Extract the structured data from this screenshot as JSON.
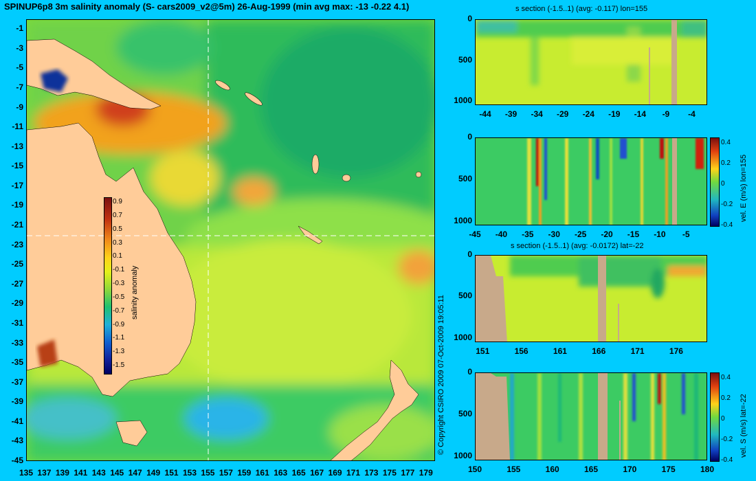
{
  "title": "SPINUP6p8 3m salinity anomaly (S- cars2009_v2@5m) 26-Aug-1999 (min avg max: -13 -0.22 4.1)",
  "copyright": "© Copyright CSIRO 2009   07-Oct-2009 19:05:11",
  "colors": {
    "background": "#00ccff",
    "land": "#ffcc99",
    "section_land": "#c8a98a"
  },
  "chart_data": [
    {
      "type": "heatmap",
      "name": "map",
      "title": "SPINUP6p8 3m salinity anomaly (S- cars2009_v2@5m) 26-Aug-1999 (min avg max: -13 -0.22 4.1)",
      "xlabel": "",
      "ylabel": "",
      "xlim": [
        135,
        180
      ],
      "ylim": [
        -45,
        0
      ],
      "x_ticks": [
        135,
        137,
        139,
        141,
        143,
        145,
        147,
        149,
        151,
        153,
        155,
        157,
        159,
        161,
        163,
        165,
        167,
        169,
        171,
        173,
        175,
        177,
        179
      ],
      "y_ticks": [
        -1,
        -3,
        -5,
        -7,
        -9,
        -11,
        -13,
        -15,
        -17,
        -19,
        -21,
        -23,
        -25,
        -27,
        -29,
        -31,
        -33,
        -35,
        -37,
        -39,
        -41,
        -43,
        -45
      ],
      "section_lines": {
        "lon": 155,
        "lat": -22
      },
      "colorbar": {
        "label": "salinity anomaly",
        "range": [
          -1.5,
          1.0
        ],
        "ticks": [
          "0.9",
          "0.7",
          "0.5",
          "0.3",
          "0.1",
          "-0.1",
          "-0.3",
          "-0.5",
          "-0.7",
          "-0.9",
          "-1.1",
          "-1.3",
          "-1.5"
        ]
      }
    },
    {
      "type": "heatmap",
      "name": "s-section-lon155",
      "title": "s section (-1.5..1) (avg: -0.117) lon=155",
      "xlim": [
        -46,
        -1
      ],
      "ylim": [
        1050,
        0
      ],
      "x_ticks": [
        "-44",
        "-39",
        "-34",
        "-29",
        "-24",
        "-19",
        "-14",
        "-9",
        "-4"
      ],
      "y_ticks": [
        "0",
        "500",
        "1000"
      ]
    },
    {
      "type": "heatmap",
      "name": "vel-e-section-lon155",
      "title": "",
      "xlim": [
        -45,
        -1
      ],
      "ylim": [
        1050,
        0
      ],
      "x_ticks": [
        "-45",
        "-40",
        "-35",
        "-30",
        "-25",
        "-20",
        "-15",
        "-10",
        "-5"
      ],
      "y_ticks": [
        "0",
        "500",
        "1000"
      ],
      "colorbar": {
        "label": "vel. E (m/s) lon=155",
        "range": [
          -0.4,
          0.45
        ],
        "ticks": [
          "0.4",
          "0.2",
          "0",
          "-0.2",
          "-0.4"
        ]
      }
    },
    {
      "type": "heatmap",
      "name": "s-section-lat-22",
      "title": "s section (-1.5..1) (avg: -0.0172) lat=-22",
      "xlim": [
        150,
        180
      ],
      "ylim": [
        1050,
        0
      ],
      "x_ticks": [
        "151",
        "156",
        "161",
        "166",
        "171",
        "176"
      ],
      "y_ticks": [
        "0",
        "500",
        "1000"
      ]
    },
    {
      "type": "heatmap",
      "name": "vel-s-section-lat-22",
      "title": "",
      "xlim": [
        150,
        180
      ],
      "ylim": [
        1050,
        0
      ],
      "x_ticks": [
        "150",
        "155",
        "160",
        "165",
        "170",
        "175",
        "180"
      ],
      "y_ticks": [
        "0",
        "500",
        "1000"
      ],
      "colorbar": {
        "label": "vel. S (m/s) lat=-22",
        "range": [
          -0.4,
          0.45
        ],
        "ticks": [
          "0.4",
          "0.2",
          "0",
          "-0.2",
          "-0.4"
        ]
      }
    }
  ]
}
